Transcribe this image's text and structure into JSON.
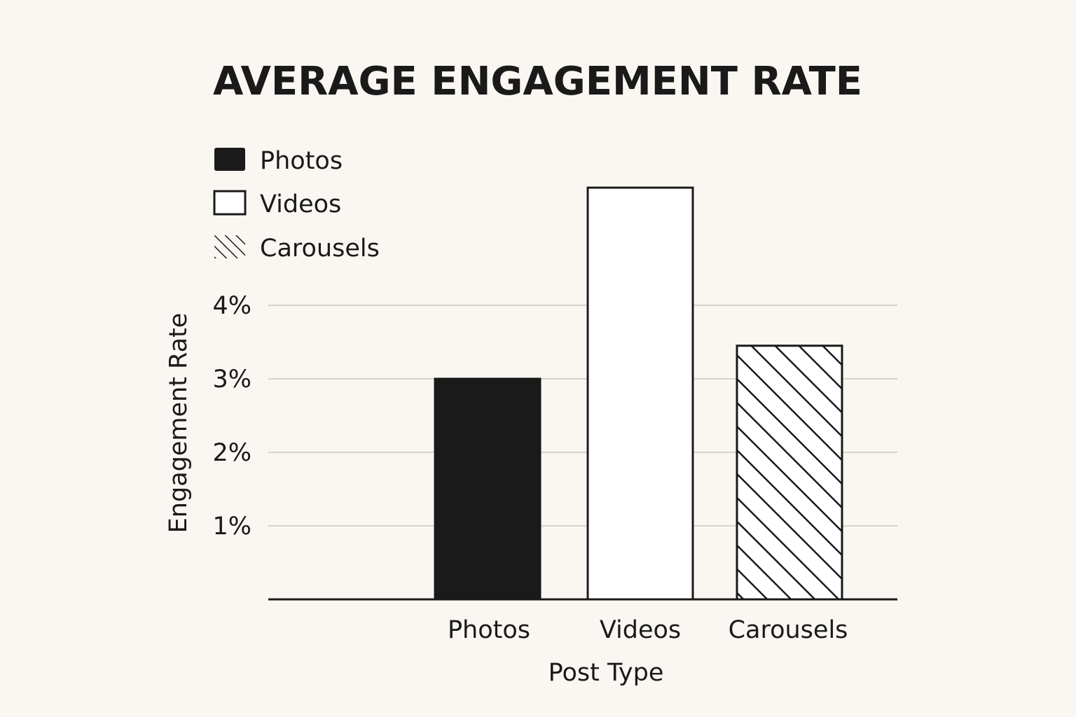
{
  "chart_data": {
    "type": "bar",
    "title": "AVERAGE ENGAGEMENT RATE",
    "xlabel": "Post Type",
    "ylabel": "Engagement Rate",
    "categories": [
      "Photos",
      "Videos",
      "Carousels"
    ],
    "values": [
      3.0,
      5.6,
      3.45
    ],
    "value_unit": "%",
    "ylim": [
      0,
      5.6
    ],
    "yticks": [
      1,
      2,
      3,
      4
    ],
    "ytick_labels": [
      "1%",
      "2%",
      "3%",
      "4%"
    ],
    "grid": true,
    "legend": {
      "placement": "top-left",
      "entries": [
        {
          "label": "Photos",
          "style": "solid"
        },
        {
          "label": "Videos",
          "style": "outline"
        },
        {
          "label": "Carousels",
          "style": "hatched"
        }
      ]
    },
    "colors": {
      "ink": "#1a1a1a",
      "background": "#faf7f2",
      "grid": "#d6d3cc",
      "bar_outline_fill": "#ffffff"
    }
  }
}
